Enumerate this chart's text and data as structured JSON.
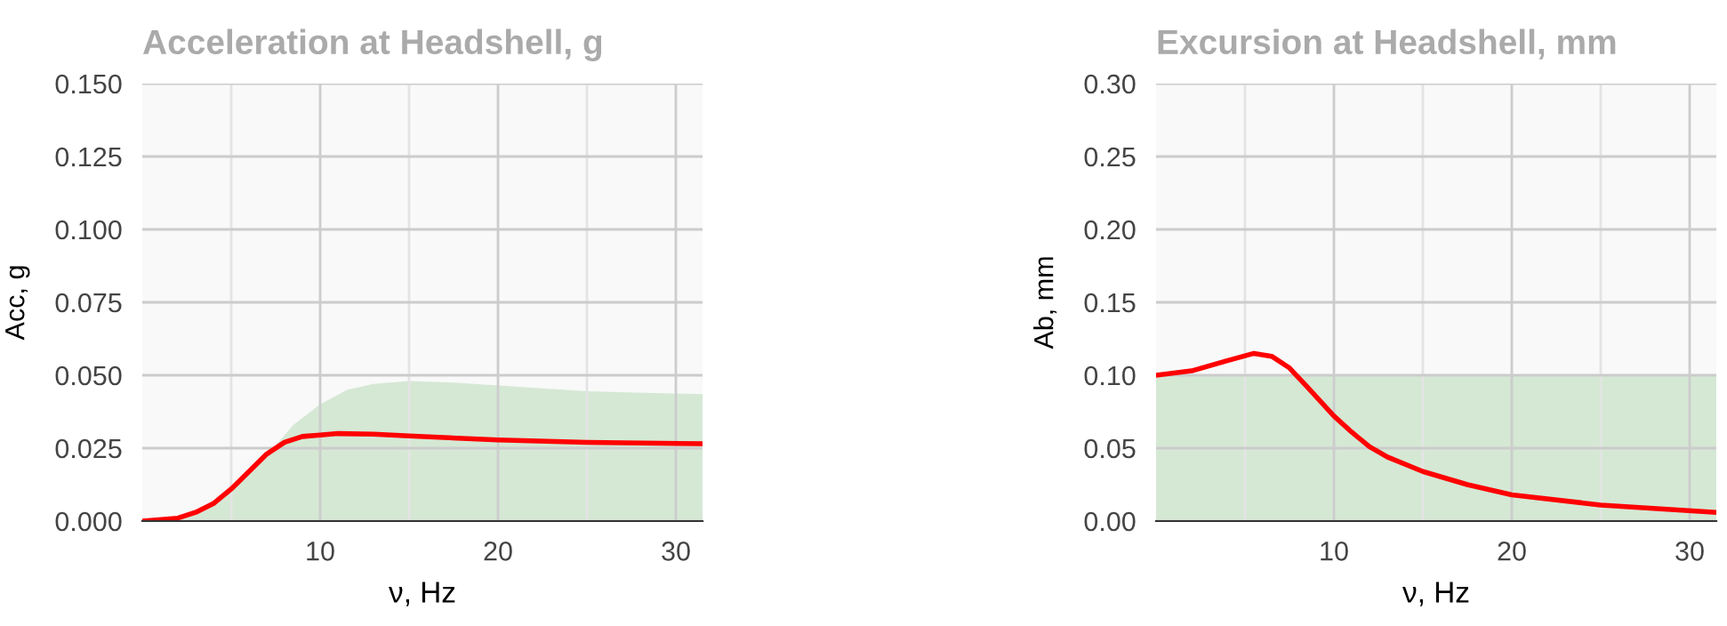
{
  "chart_data": [
    {
      "type": "line",
      "title": "Acceleration at Headshell, g",
      "xlabel": "ν, Hz",
      "ylabel": "Acc, g",
      "xlim": [
        0,
        31.5
      ],
      "ylim": [
        0,
        0.15
      ],
      "xticks": [
        {
          "value": 5,
          "label": null
        },
        10,
        {
          "value": 15,
          "label": null
        },
        20,
        {
          "value": 25,
          "label": null
        },
        30
      ],
      "yticks": [
        {
          "value": 0,
          "label": "0.000"
        },
        {
          "value": 0.025,
          "label": "0.025"
        },
        {
          "value": 0.05,
          "label": "0.050"
        },
        {
          "value": 0.075,
          "label": "0.075"
        },
        {
          "value": 0.1,
          "label": "0.100"
        },
        {
          "value": 0.125,
          "label": "0.125"
        },
        {
          "value": 0.15,
          "label": "0.150"
        }
      ],
      "grid": true,
      "legend": false,
      "series": [
        {
          "type": "area",
          "color": "#d5e8d4",
          "x": [
            0,
            2,
            3,
            4,
            5,
            6,
            7,
            7.5,
            8.5,
            10,
            11.5,
            13,
            15,
            17.5,
            20,
            25,
            31.5
          ],
          "values": [
            0,
            0.001,
            0.003,
            0.006,
            0.011,
            0.017,
            0.023,
            0.026,
            0.033,
            0.04,
            0.045,
            0.047,
            0.048,
            0.0475,
            0.0465,
            0.0445,
            0.0435
          ]
        },
        {
          "color": "#ff0000",
          "x": [
            0,
            2,
            3,
            4,
            5,
            6,
            7,
            8,
            9,
            10,
            11,
            13,
            15,
            20,
            25,
            31.5
          ],
          "values": [
            0,
            0.001,
            0.003,
            0.006,
            0.011,
            0.017,
            0.023,
            0.027,
            0.029,
            0.0295,
            0.03,
            0.0298,
            0.0292,
            0.0278,
            0.027,
            0.0265
          ]
        }
      ]
    },
    {
      "type": "line",
      "title": "Excursion at Headshell, mm",
      "xlabel": "ν, Hz",
      "ylabel": "Ab, mm",
      "xlim": [
        0,
        31.5
      ],
      "ylim": [
        0,
        0.3
      ],
      "xticks": [
        {
          "value": 5,
          "label": null
        },
        10,
        {
          "value": 15,
          "label": null
        },
        20,
        {
          "value": 25,
          "label": null
        },
        30
      ],
      "yticks": [
        {
          "value": 0,
          "label": "0.00"
        },
        {
          "value": 0.05,
          "label": "0.05"
        },
        {
          "value": 0.1,
          "label": "0.10"
        },
        {
          "value": 0.15,
          "label": "0.15"
        },
        {
          "value": 0.2,
          "label": "0.20"
        },
        {
          "value": 0.25,
          "label": "0.25"
        },
        {
          "value": 0.3,
          "label": "0.30"
        }
      ],
      "grid": true,
      "legend": false,
      "series": [
        {
          "type": "area",
          "color": "#d5e8d4",
          "x": [
            0,
            31.5
          ],
          "values": [
            0.1,
            0.1
          ]
        },
        {
          "color": "#ff0000",
          "x": [
            0,
            2,
            4,
            5.5,
            6.5,
            7.5,
            8.5,
            10,
            11,
            12,
            13,
            15,
            17.5,
            20,
            25,
            31.5
          ],
          "values": [
            0.1,
            0.103,
            0.11,
            0.115,
            0.113,
            0.105,
            0.092,
            0.072,
            0.061,
            0.051,
            0.044,
            0.034,
            0.025,
            0.018,
            0.011,
            0.006
          ]
        }
      ]
    }
  ]
}
